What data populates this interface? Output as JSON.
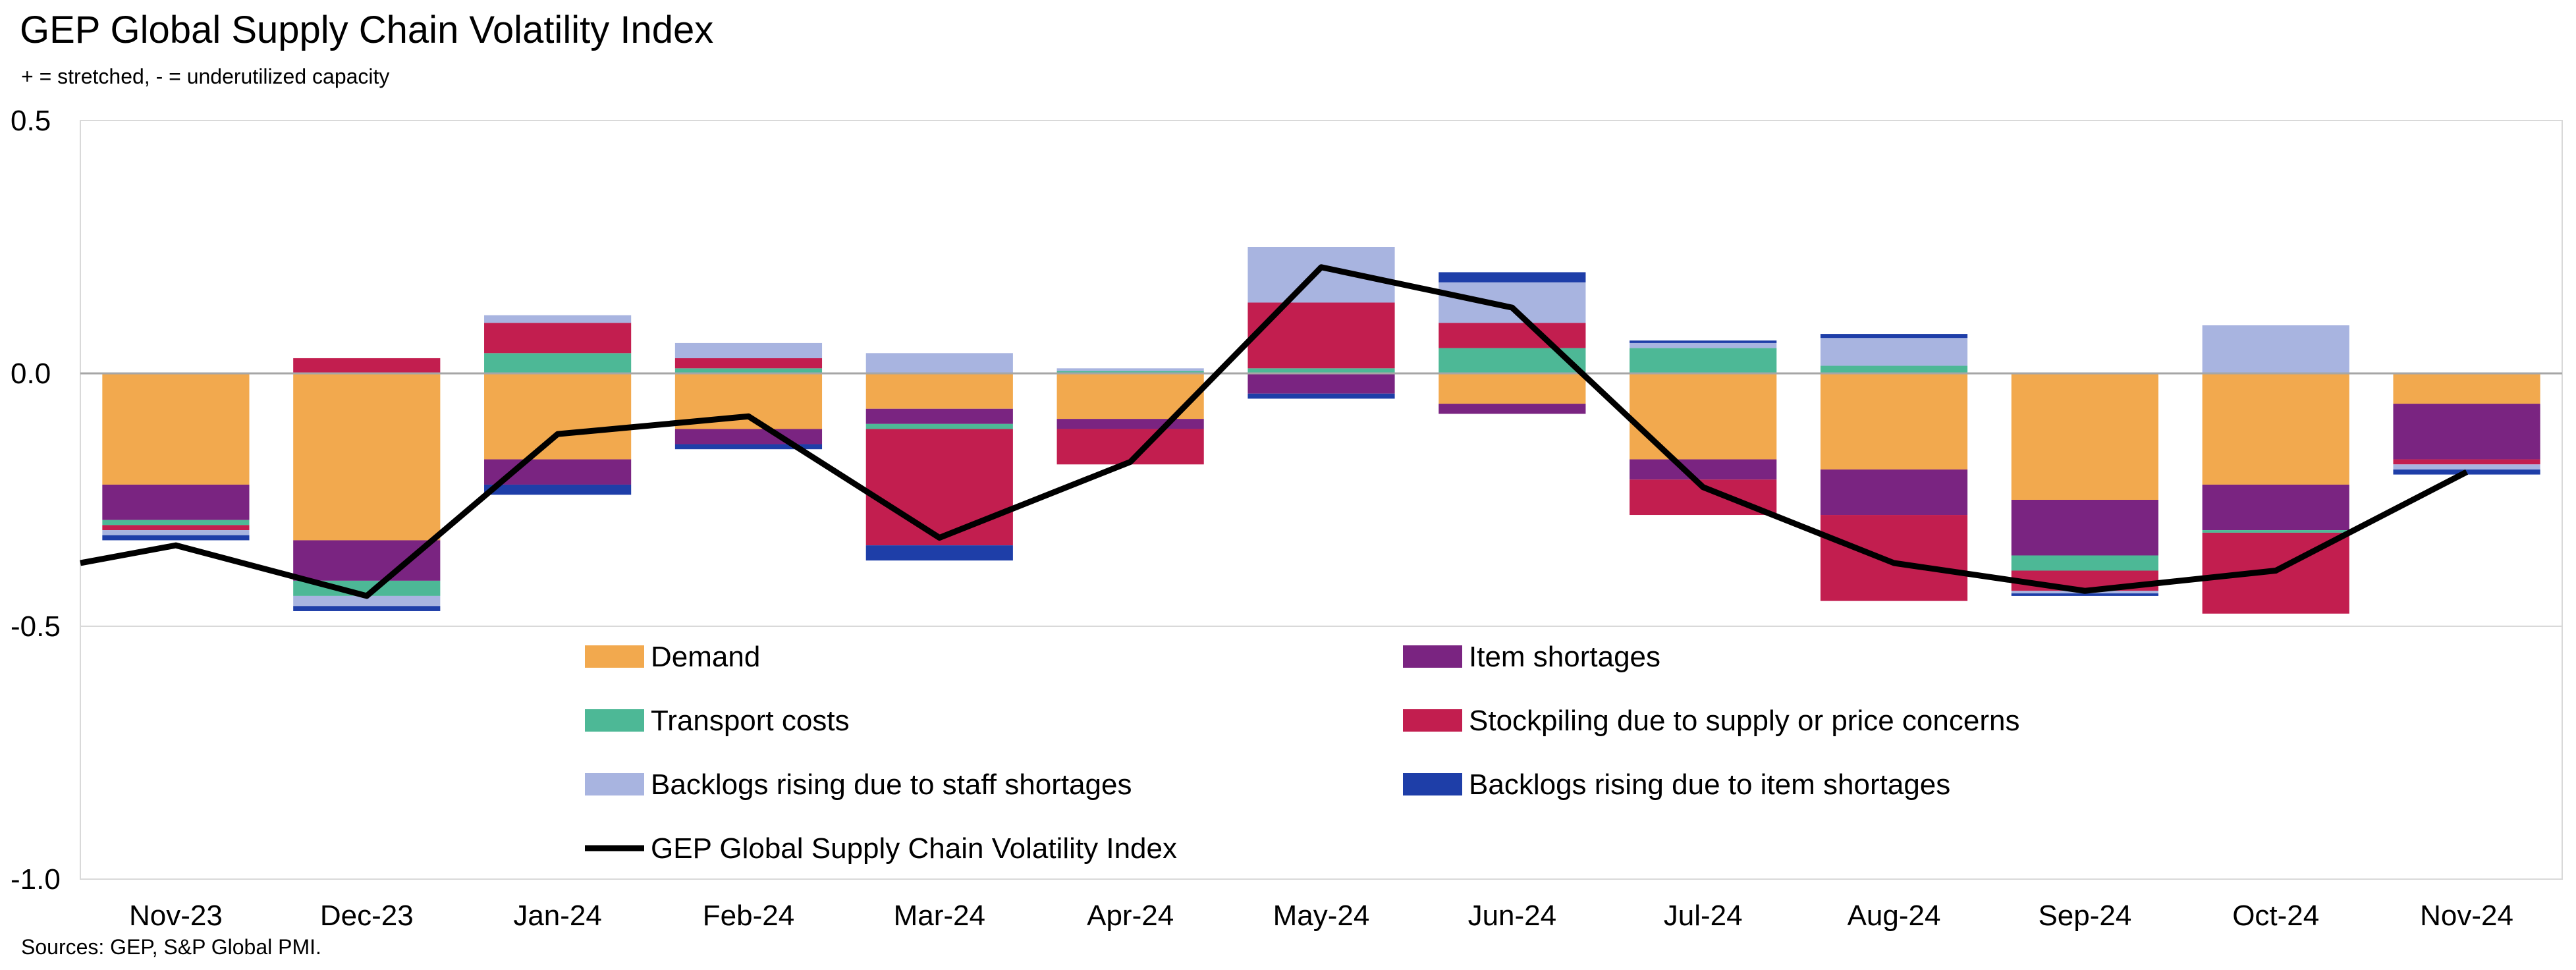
{
  "title": "GEP Global Supply Chain Volatility Index",
  "subtitle": "+ = stretched, - = underutilized capacity",
  "source": "Sources: GEP, S&P Global PMI.",
  "chart_data": {
    "type": "bar",
    "stacked": true,
    "categories": [
      "Nov-23",
      "Dec-23",
      "Jan-24",
      "Feb-24",
      "Mar-24",
      "Apr-24",
      "May-24",
      "Jun-24",
      "Jul-24",
      "Aug-24",
      "Sep-24",
      "Oct-24",
      "Nov-24"
    ],
    "ylim": [
      -1.0,
      0.5
    ],
    "yticks": [
      0.5,
      0.0,
      -0.5,
      -1.0
    ],
    "ytick_labels": [
      "0.5",
      "0.0",
      "-0.5",
      "-1.0"
    ],
    "grid": true,
    "legend_position": "inside-bottom",
    "series": [
      {
        "name": "Demand",
        "color": "#F2A94E",
        "values": [
          -0.22,
          -0.33,
          -0.17,
          -0.11,
          -0.07,
          -0.09,
          0.0,
          -0.06,
          -0.17,
          -0.19,
          -0.25,
          -0.22,
          -0.06
        ]
      },
      {
        "name": "Item shortages",
        "color": "#7A2481",
        "values": [
          -0.07,
          -0.08,
          -0.05,
          -0.03,
          -0.03,
          -0.02,
          -0.04,
          -0.02,
          -0.04,
          -0.09,
          -0.11,
          -0.09,
          -0.11
        ]
      },
      {
        "name": "Transport costs",
        "color": "#4DB896",
        "values": [
          -0.01,
          -0.03,
          0.04,
          0.01,
          -0.01,
          0.005,
          0.01,
          0.05,
          0.05,
          0.015,
          -0.03,
          -0.005,
          0.0
        ]
      },
      {
        "name": "Stockpiling due to supply or price concerns",
        "color": "#C21E4F",
        "values": [
          -0.01,
          0.03,
          0.06,
          0.02,
          -0.23,
          -0.07,
          0.13,
          0.05,
          -0.07,
          -0.17,
          -0.04,
          -0.16,
          -0.01
        ]
      },
      {
        "name": "Backlogs rising due to staff shortages",
        "color": "#A8B4E0",
        "values": [
          -0.01,
          -0.02,
          0.015,
          0.03,
          0.04,
          0.005,
          0.11,
          0.08,
          0.01,
          0.055,
          -0.005,
          0.095,
          -0.01
        ]
      },
      {
        "name": "Backlogs rising due to item shortages",
        "color": "#1E3EA8",
        "values": [
          -0.01,
          -0.01,
          -0.02,
          -0.01,
          -0.03,
          0.0,
          -0.01,
          0.02,
          0.005,
          0.008,
          -0.005,
          0.0,
          -0.01
        ]
      },
      {
        "name": "GEP Global Supply Chain Volatility Index",
        "color": "#000000",
        "kind": "line",
        "values": [
          -0.34,
          -0.44,
          -0.12,
          -0.085,
          -0.325,
          -0.175,
          0.21,
          0.13,
          -0.225,
          -0.375,
          -0.43,
          -0.39,
          -0.195
        ]
      }
    ]
  }
}
